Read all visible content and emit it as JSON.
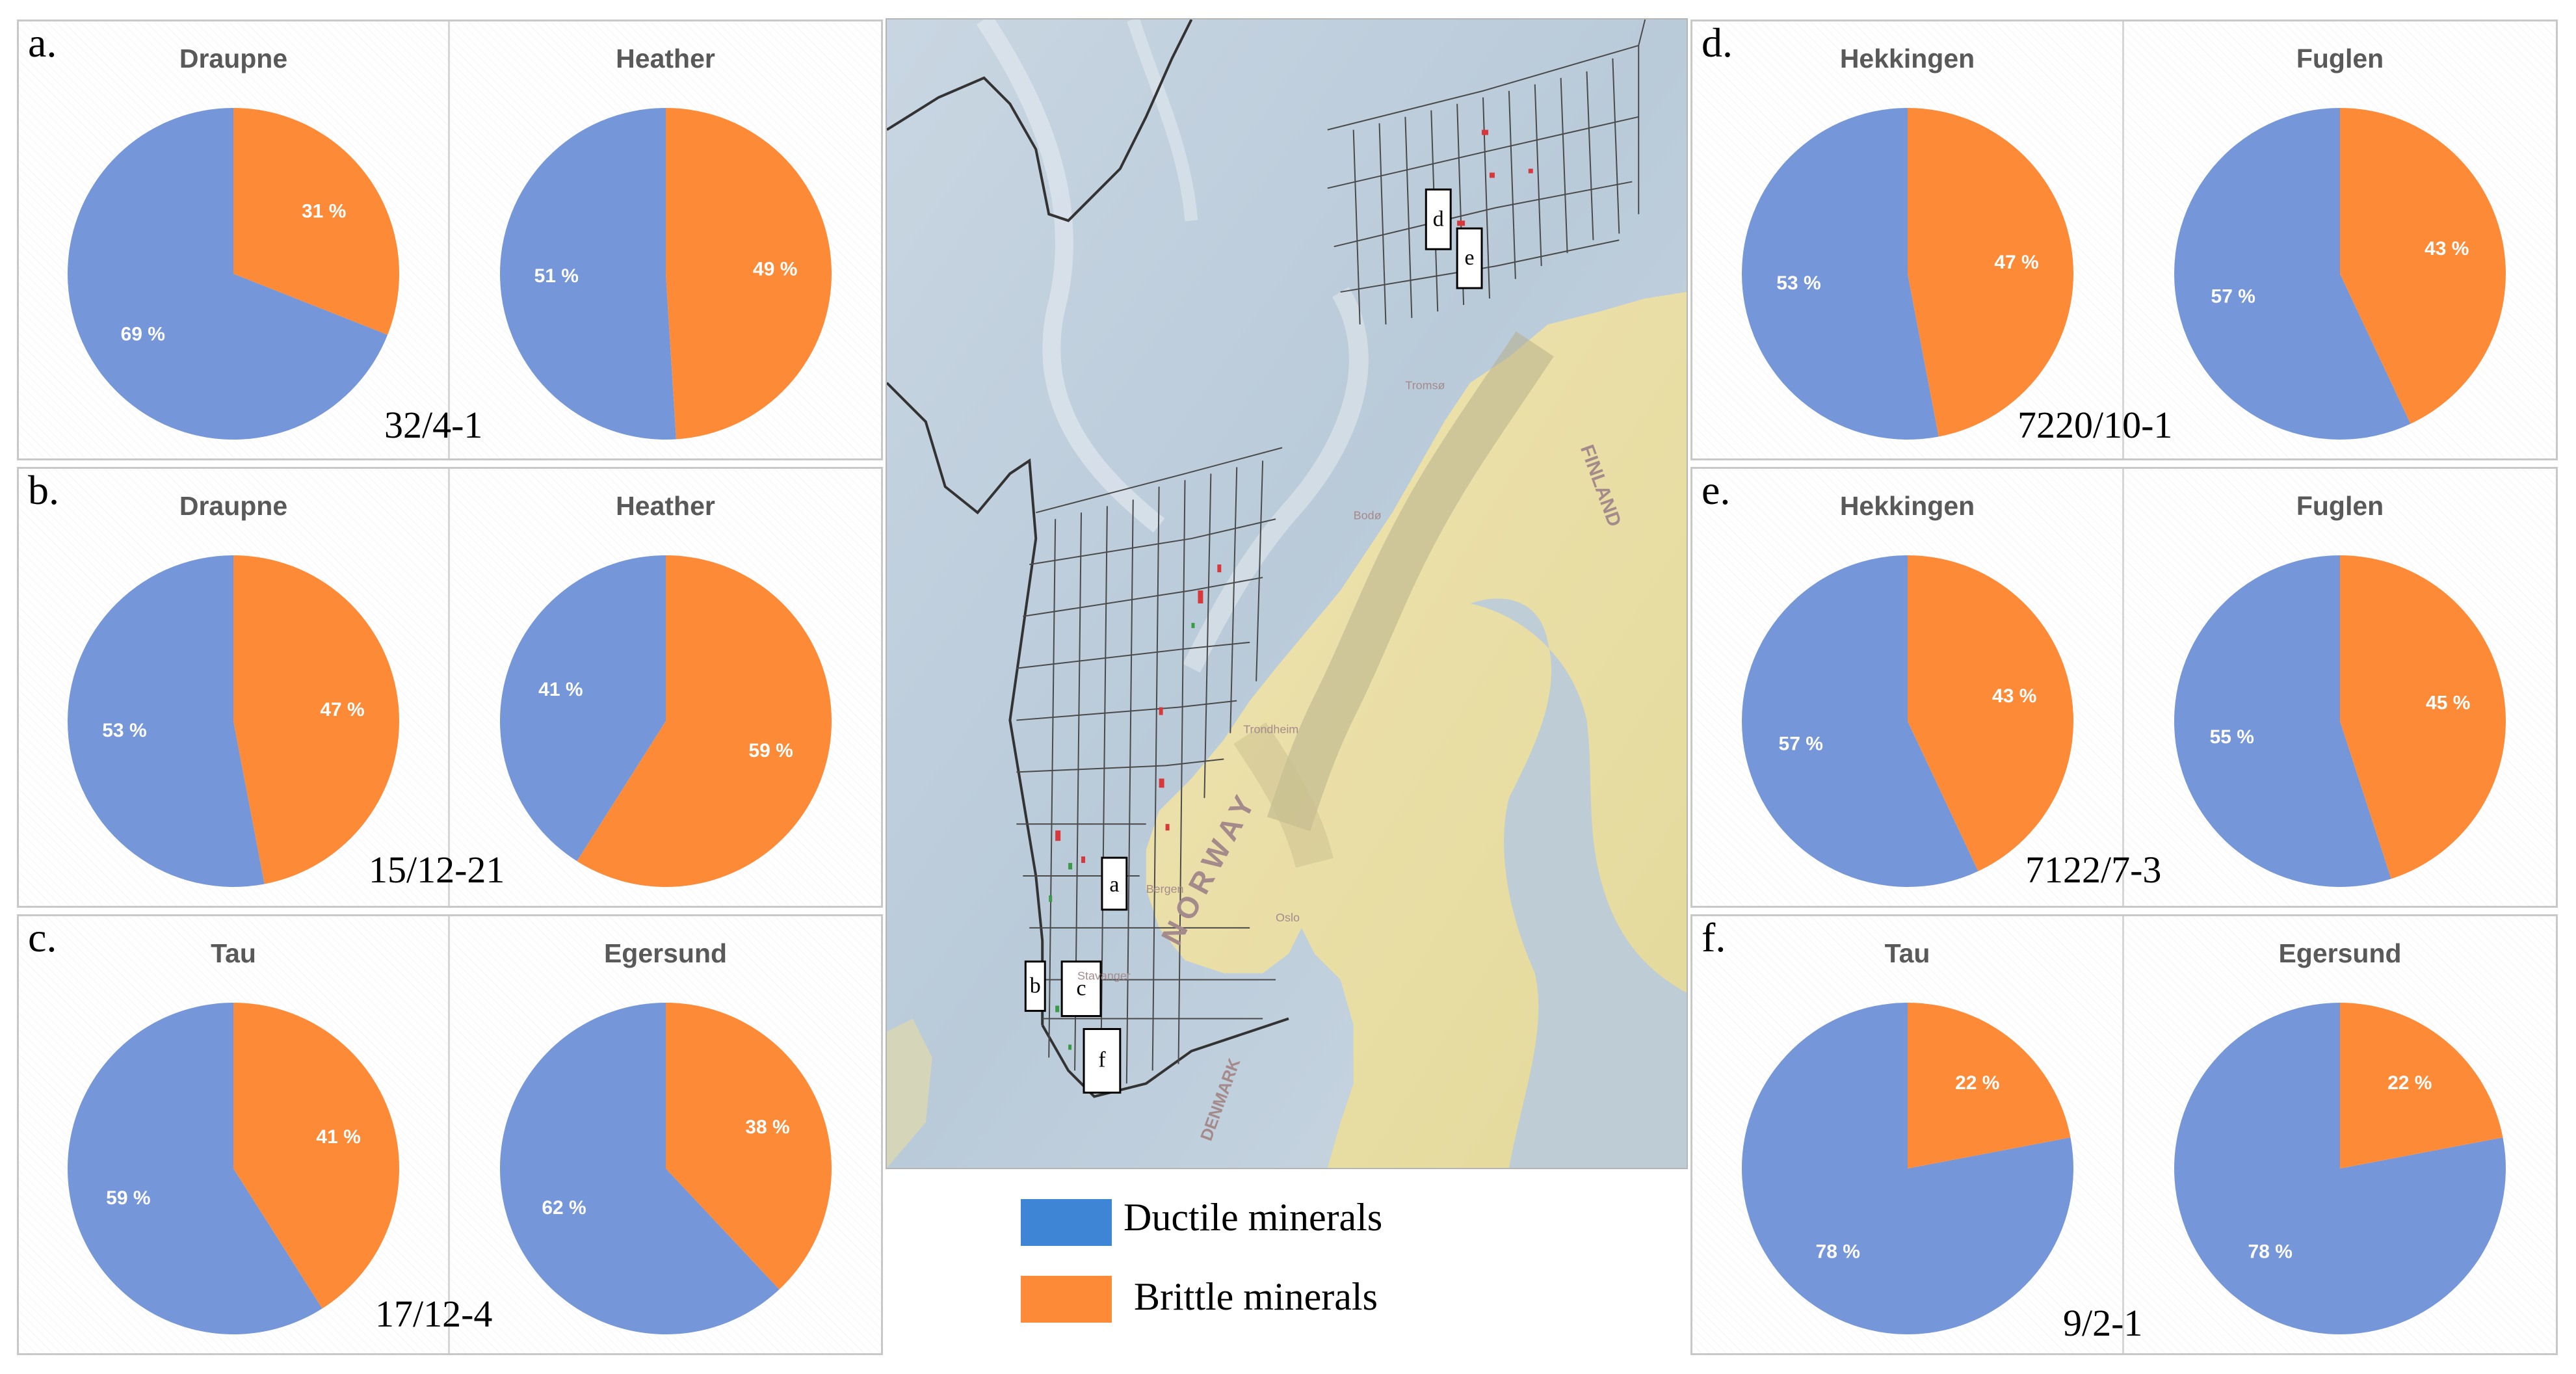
{
  "colors": {
    "ductile": "#7596d9",
    "brittle": "#fc8a36"
  },
  "legend": {
    "ductile_label": "Ductile minerals",
    "brittle_label": "Brittle minerals"
  },
  "map": {
    "boxes": [
      "a",
      "b",
      "c",
      "d",
      "e",
      "f"
    ],
    "place_names": [
      "NORWAY",
      "Bergen",
      "Stavanger",
      "Oslo",
      "Trondheim",
      "Bodø",
      "Tromsø",
      "FINLAND",
      "DENMARK"
    ]
  },
  "panels": [
    {
      "letter": "a.",
      "well": "32/4-1"
    },
    {
      "letter": "b.",
      "well": "15/12-21"
    },
    {
      "letter": "c.",
      "well": "17/12-4"
    },
    {
      "letter": "d.",
      "well": "7220/10-1"
    },
    {
      "letter": "e.",
      "well": "7122/7-3"
    },
    {
      "letter": "f.",
      "well": "9/2-1"
    }
  ],
  "chart_data": [
    {
      "type": "pie",
      "title": "Draupne",
      "panel": "a",
      "well": "32/4-1",
      "series": [
        {
          "name": "Ductile minerals",
          "value": 69,
          "label": "69 %"
        },
        {
          "name": "Brittle minerals",
          "value": 31,
          "label": "31 %"
        }
      ]
    },
    {
      "type": "pie",
      "title": "Heather",
      "panel": "a",
      "well": "32/4-1",
      "series": [
        {
          "name": "Ductile minerals",
          "value": 51,
          "label": "51 %"
        },
        {
          "name": "Brittle minerals",
          "value": 49,
          "label": "49 %"
        }
      ]
    },
    {
      "type": "pie",
      "title": "Draupne",
      "panel": "b",
      "well": "15/12-21",
      "series": [
        {
          "name": "Ductile minerals",
          "value": 53,
          "label": "53 %"
        },
        {
          "name": "Brittle minerals",
          "value": 47,
          "label": "47 %"
        }
      ]
    },
    {
      "type": "pie",
      "title": "Heather",
      "panel": "b",
      "well": "15/12-21",
      "series": [
        {
          "name": "Ductile minerals",
          "value": 41,
          "label": "41 %"
        },
        {
          "name": "Brittle minerals",
          "value": 59,
          "label": "59 %"
        }
      ]
    },
    {
      "type": "pie",
      "title": "Tau",
      "panel": "c",
      "well": "17/12-4",
      "series": [
        {
          "name": "Ductile minerals",
          "value": 59,
          "label": "59 %"
        },
        {
          "name": "Brittle minerals",
          "value": 41,
          "label": "41 %"
        }
      ]
    },
    {
      "type": "pie",
      "title": "Egersund",
      "panel": "c",
      "well": "17/12-4",
      "series": [
        {
          "name": "Ductile minerals",
          "value": 62,
          "label": "62 %"
        },
        {
          "name": "Brittle minerals",
          "value": 38,
          "label": "38 %"
        }
      ]
    },
    {
      "type": "pie",
      "title": "Hekkingen",
      "panel": "d",
      "well": "7220/10-1",
      "series": [
        {
          "name": "Ductile minerals",
          "value": 53,
          "label": "53 %"
        },
        {
          "name": "Brittle minerals",
          "value": 47,
          "label": "47 %"
        }
      ]
    },
    {
      "type": "pie",
      "title": "Fuglen",
      "panel": "d",
      "well": "7220/10-1",
      "series": [
        {
          "name": "Ductile minerals",
          "value": 57,
          "label": "57 %"
        },
        {
          "name": "Brittle minerals",
          "value": 43,
          "label": "43 %"
        }
      ]
    },
    {
      "type": "pie",
      "title": "Hekkingen",
      "panel": "e",
      "well": "7122/7-3",
      "series": [
        {
          "name": "Ductile minerals",
          "value": 57,
          "label": "57 %"
        },
        {
          "name": "Brittle minerals",
          "value": 43,
          "label": "43 %"
        }
      ]
    },
    {
      "type": "pie",
      "title": "Fuglen",
      "panel": "e",
      "well": "7122/7-3",
      "series": [
        {
          "name": "Ductile minerals",
          "value": 55,
          "label": "55 %"
        },
        {
          "name": "Brittle minerals",
          "value": 45,
          "label": "45 %"
        }
      ]
    },
    {
      "type": "pie",
      "title": "Tau",
      "panel": "f",
      "well": "9/2-1",
      "series": [
        {
          "name": "Ductile minerals",
          "value": 78,
          "label": "78 %"
        },
        {
          "name": "Brittle minerals",
          "value": 22,
          "label": "22 %"
        }
      ]
    },
    {
      "type": "pie",
      "title": "Egersund",
      "panel": "f",
      "well": "9/2-1",
      "series": [
        {
          "name": "Ductile minerals",
          "value": 78,
          "label": "78 %"
        },
        {
          "name": "Brittle minerals",
          "value": 22,
          "label": "22 %"
        }
      ]
    }
  ]
}
